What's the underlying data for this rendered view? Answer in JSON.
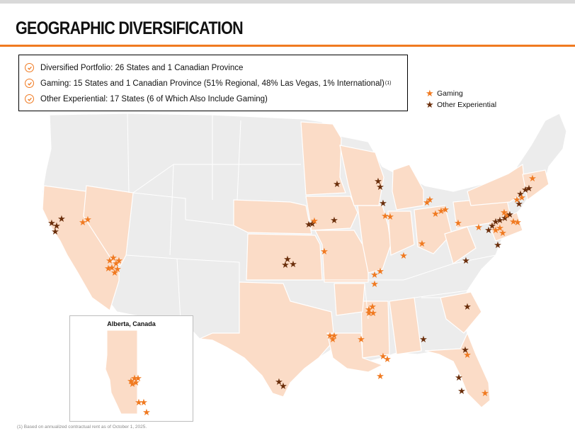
{
  "header": {
    "title": "GEOGRAPHIC DIVERSIFICATION"
  },
  "highlights": [
    {
      "text": "Diversified Portfolio: 26 States and 1 Canadian Province",
      "footnote": ""
    },
    {
      "text": "Gaming: 15 States and 1 Canadian Province (51% Regional, 48% Las Vegas, 1% International)",
      "footnote": "(1)"
    },
    {
      "text": "Other Experiential: 17 States (6 of Which Also Include Gaming)",
      "footnote": ""
    }
  ],
  "legend": {
    "gaming_label": "Gaming",
    "experiential_label": "Other Experiential"
  },
  "inset": {
    "title": "Alberta, Canada"
  },
  "footnote": "(1) Based on annualized contractual rent as of October 1, 2025.",
  "colors": {
    "gaming": "#f07a21",
    "experiential": "#6b2f0c",
    "highlighted_state": "#fbdcc7",
    "other_state": "#ececec",
    "accent": "#f07a21"
  },
  "icons": {
    "check": "check-circle-icon",
    "marker": "star-icon"
  }
}
